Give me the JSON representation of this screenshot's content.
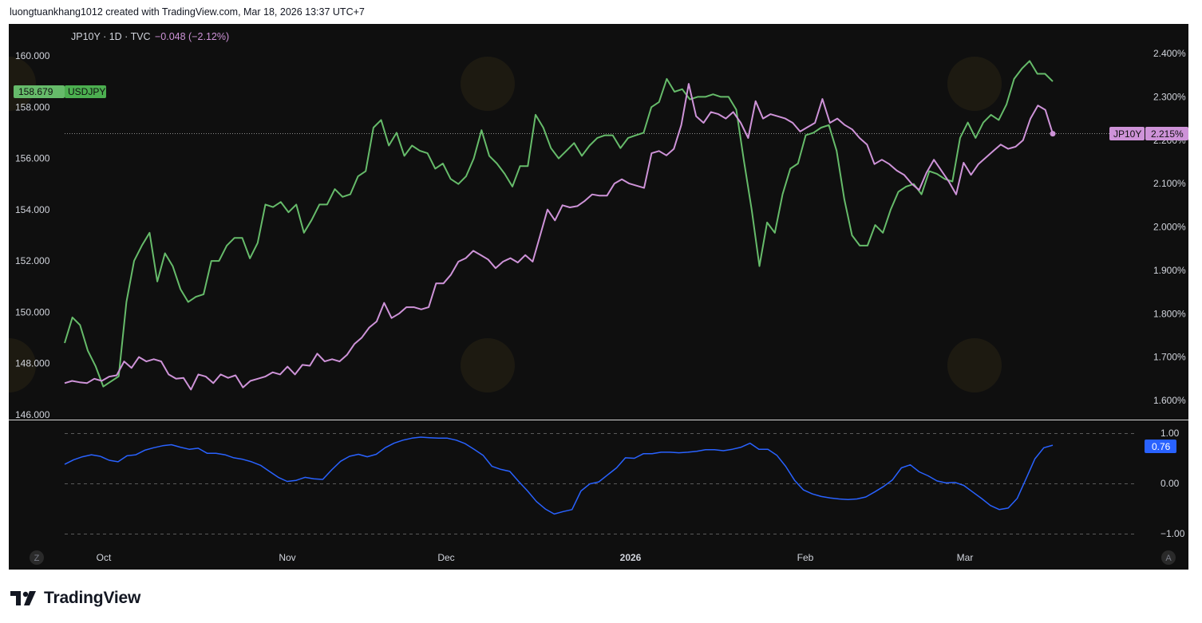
{
  "credit_line": "luongtuankhang1012 created with TradingView.com, Mar 18, 2026 13:37 UTC+7",
  "brand": {
    "name": "TradingView"
  },
  "colors": {
    "background": "#0f0f0f",
    "usdjpy": "#66bb6a",
    "jp10y": "#ce93d8",
    "correlation": "#2962ff",
    "axis_text": "#d1d4dc"
  },
  "header": {
    "symbol_line": "JP10Y · 1D · TVC",
    "change": "−0.048 (−2.12%)"
  },
  "badges": {
    "usdjpy_value": "158.679",
    "usdjpy_label": "USDJPY",
    "jp10y_label": "JP10Y",
    "jp10y_value": "2.215%",
    "corr_value": "0.76"
  },
  "corner_buttons": {
    "left": "Z",
    "right": "A"
  },
  "chart_data": [
    {
      "type": "line",
      "x_ticks": [
        "Oct",
        "Nov",
        "Dec",
        "2026",
        "Feb",
        "Mar"
      ],
      "left_axis": {
        "ticks": [
          "160.000",
          "158.000",
          "156.000",
          "154.000",
          "152.000",
          "150.000",
          "148.000",
          "146.000"
        ],
        "ylim": [
          146,
          160.5
        ]
      },
      "right_axis": {
        "ticks": [
          "2.400%",
          "2.300%",
          "2.200%",
          "2.100%",
          "2.000%",
          "1.900%",
          "1.800%",
          "1.700%",
          "1.600%"
        ],
        "ylim": [
          1.575,
          2.405
        ]
      },
      "series": [
        {
          "name": "USDJPY",
          "axis": "left",
          "values": [
            148.8,
            149.8,
            149.5,
            148.5,
            147.9,
            147.1,
            147.3,
            147.5,
            150.4,
            152.0,
            152.6,
            153.1,
            151.2,
            152.3,
            151.8,
            150.9,
            150.4,
            150.6,
            150.7,
            152.0,
            152.0,
            152.6,
            152.9,
            152.9,
            152.1,
            152.7,
            154.2,
            154.1,
            154.3,
            153.9,
            154.2,
            153.1,
            153.6,
            154.2,
            154.2,
            154.8,
            154.5,
            154.6,
            155.3,
            155.5,
            157.2,
            157.5,
            156.5,
            157.0,
            156.1,
            156.5,
            156.3,
            156.2,
            155.6,
            155.8,
            155.2,
            155.0,
            155.3,
            156.0,
            157.1,
            156.1,
            155.8,
            155.4,
            154.9,
            155.7,
            155.7,
            157.7,
            157.2,
            156.4,
            156.0,
            156.3,
            156.6,
            156.1,
            156.5,
            156.8,
            156.9,
            156.9,
            156.4,
            156.8,
            156.9,
            157.0,
            158.0,
            158.2,
            159.1,
            158.6,
            158.7,
            158.3,
            158.4,
            158.4,
            158.5,
            158.4,
            158.4,
            157.9,
            155.9,
            154.0,
            151.8,
            153.5,
            153.1,
            154.6,
            155.6,
            155.8,
            156.9,
            157.0,
            157.2,
            157.3,
            156.3,
            154.4,
            153.0,
            152.6,
            152.6,
            153.4,
            153.1,
            154.0,
            154.7,
            154.9,
            155.0,
            154.6,
            155.5,
            155.4,
            155.2,
            155.1,
            156.8,
            157.4,
            156.8,
            157.4,
            157.7,
            157.5,
            158.1,
            159.1,
            159.5,
            159.8,
            159.3,
            159.3,
            159.0
          ]
        },
        {
          "name": "JP10Y",
          "axis": "right",
          "values": [
            1.64,
            1.645,
            1.642,
            1.64,
            1.65,
            1.645,
            1.655,
            1.658,
            1.69,
            1.675,
            1.7,
            1.69,
            1.695,
            1.69,
            1.66,
            1.65,
            1.652,
            1.625,
            1.66,
            1.655,
            1.64,
            1.66,
            1.652,
            1.658,
            1.63,
            1.645,
            1.65,
            1.655,
            1.665,
            1.66,
            1.678,
            1.66,
            1.682,
            1.68,
            1.708,
            1.69,
            1.695,
            1.69,
            1.705,
            1.73,
            1.745,
            1.768,
            1.782,
            1.825,
            1.79,
            1.8,
            1.815,
            1.815,
            1.81,
            1.815,
            1.87,
            1.87,
            1.89,
            1.92,
            1.928,
            1.945,
            1.935,
            1.925,
            1.905,
            1.92,
            1.928,
            1.918,
            1.935,
            1.92,
            1.98,
            2.04,
            2.015,
            2.05,
            2.045,
            2.048,
            2.06,
            2.075,
            2.072,
            2.072,
            2.1,
            2.11,
            2.1,
            2.095,
            2.09,
            2.17,
            2.175,
            2.165,
            2.18,
            2.235,
            2.33,
            2.255,
            2.24,
            2.265,
            2.26,
            2.25,
            2.265,
            2.24,
            2.205,
            2.29,
            2.25,
            2.26,
            2.255,
            2.25,
            2.24,
            2.22,
            2.23,
            2.24,
            2.295,
            2.24,
            2.25,
            2.235,
            2.225,
            2.205,
            2.19,
            2.145,
            2.155,
            2.145,
            2.13,
            2.12,
            2.1,
            2.085,
            2.125,
            2.155,
            2.13,
            2.105,
            2.075,
            2.148,
            2.12,
            2.145,
            2.16,
            2.175,
            2.19,
            2.18,
            2.185,
            2.2,
            2.25,
            2.28,
            2.27,
            2.215
          ]
        }
      ]
    },
    {
      "type": "line",
      "y_ticks": [
        "1.00",
        "0.00",
        "−1.00"
      ],
      "ylim": [
        -1.05,
        1.05
      ],
      "series": [
        {
          "name": "",
          "values": [
            0.38,
            0.47,
            0.53,
            0.57,
            0.54,
            0.46,
            0.43,
            0.55,
            0.57,
            0.66,
            0.71,
            0.75,
            0.77,
            0.72,
            0.68,
            0.7,
            0.6,
            0.6,
            0.57,
            0.51,
            0.48,
            0.43,
            0.36,
            0.24,
            0.12,
            0.04,
            0.06,
            0.12,
            0.09,
            0.08,
            0.27,
            0.44,
            0.54,
            0.58,
            0.53,
            0.58,
            0.71,
            0.8,
            0.86,
            0.9,
            0.92,
            0.91,
            0.9,
            0.9,
            0.86,
            0.79,
            0.68,
            0.56,
            0.34,
            0.28,
            0.24,
            0.04,
            -0.15,
            -0.36,
            -0.51,
            -0.61,
            -0.56,
            -0.52,
            -0.15,
            -0.01,
            0.03,
            0.17,
            0.31,
            0.51,
            0.5,
            0.59,
            0.59,
            0.62,
            0.62,
            0.61,
            0.62,
            0.64,
            0.67,
            0.67,
            0.65,
            0.68,
            0.72,
            0.8,
            0.68,
            0.68,
            0.56,
            0.34,
            0.06,
            -0.13,
            -0.21,
            -0.26,
            -0.29,
            -0.31,
            -0.32,
            -0.31,
            -0.27,
            -0.17,
            -0.06,
            0.07,
            0.31,
            0.37,
            0.23,
            0.15,
            0.05,
            0.01,
            0.02,
            -0.04,
            -0.17,
            -0.3,
            -0.44,
            -0.52,
            -0.49,
            -0.3,
            0.09,
            0.49,
            0.71,
            0.76
          ]
        }
      ]
    }
  ]
}
